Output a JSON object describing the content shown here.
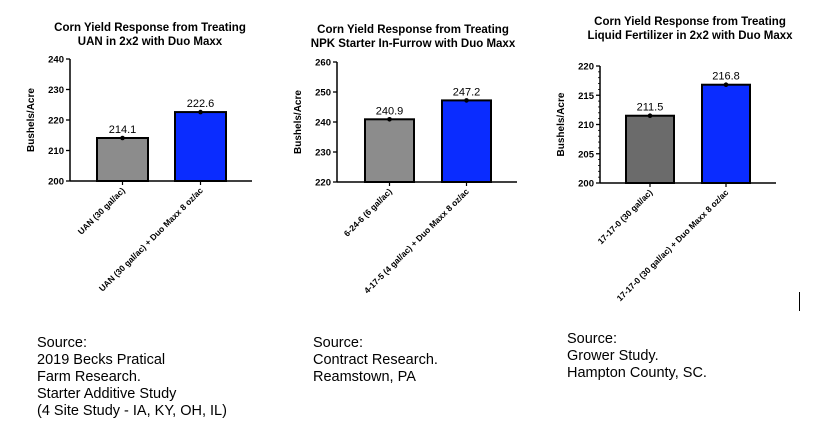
{
  "chart_data": [
    {
      "type": "bar",
      "title": [
        "Corn Yield Response from Treating",
        "UAN in 2x2 with Duo Maxx"
      ],
      "ylabel": "Bushels/Acre",
      "ylim": [
        200,
        240
      ],
      "yticks": [
        200,
        210,
        220,
        230,
        240
      ],
      "minor_ticks": false,
      "categories": [
        "UAN (30 gal/ac)",
        "UAN (30 gal/ac) + Duo Maxx 8 oz/ac"
      ],
      "values": [
        214.1,
        222.6
      ],
      "data_labels": [
        "214.1",
        "222.6"
      ],
      "colors": [
        "#8c8c8c",
        "#0a2cff"
      ],
      "grid": false
    },
    {
      "type": "bar",
      "title": [
        "Corn Yield Response from Treating",
        "NPK Starter In-Furrow with Duo Maxx"
      ],
      "ylabel": "Bushels/Acre",
      "ylim": [
        220,
        260
      ],
      "yticks": [
        220,
        230,
        240,
        250,
        260
      ],
      "minor_ticks": false,
      "categories": [
        "6-24-6 (6 gal/ac)",
        "4-17-5 (4 gal/ac) + Duo Maxx 8 oz/ac"
      ],
      "values": [
        240.9,
        247.2
      ],
      "data_labels": [
        "240.9",
        "247.2"
      ],
      "colors": [
        "#8c8c8c",
        "#0a2cff"
      ],
      "grid": false
    },
    {
      "type": "bar",
      "title": [
        "Corn Yield Response from Treating",
        "Liquid Fertilizer in 2x2 with Duo Maxx"
      ],
      "ylabel": "Bushels/Acre",
      "ylim": [
        200,
        220
      ],
      "yticks": [
        200,
        205,
        210,
        215,
        220
      ],
      "minor_ticks": true,
      "categories": [
        "17-17-0 (30 gal/ac)",
        "17-17-0 (30 gal/ac) + Duo Maxx 8 oz/ac"
      ],
      "values": [
        211.5,
        216.8
      ],
      "data_labels": [
        "211.5",
        "216.8"
      ],
      "colors": [
        "#6b6b6b",
        "#0a2cff"
      ],
      "grid": false
    }
  ],
  "sources": [
    {
      "lines": [
        "Source:",
        "2019 Becks Pratical",
        "Farm Research.",
        "Starter Additive Study",
        "(4 Site Study - IA, KY, OH, IL)"
      ]
    },
    {
      "lines": [
        "Source:",
        "Contract Research.",
        "Reamstown, PA"
      ]
    },
    {
      "lines": [
        "Source:",
        "Grower Study.",
        "Hampton County, SC."
      ]
    }
  ]
}
